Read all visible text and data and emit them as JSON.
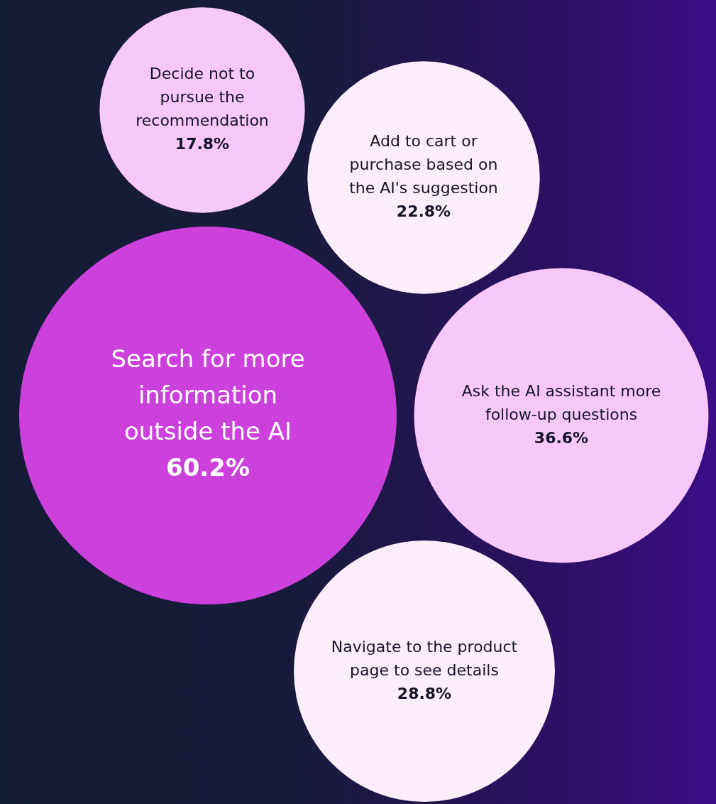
{
  "chart_data": {
    "type": "other",
    "categories": [
      "Decide not to pursue the recommendation",
      "Add to cart or purchase based on the AI's suggestion",
      "Search for more information outside the AI",
      "Ask the AI assistant more follow-up questions",
      "Navigate to the product page to see details"
    ],
    "values": [
      17.8,
      22.8,
      60.2,
      36.6,
      28.8
    ],
    "value_labels": [
      "17.8%",
      "22.8%",
      "60.2%",
      "36.6%",
      "28.8%"
    ],
    "colors": [
      "#f8c8fb",
      "#fcedfb",
      "#cc40dc",
      "#f8c8fb",
      "#fcedfb"
    ]
  }
}
